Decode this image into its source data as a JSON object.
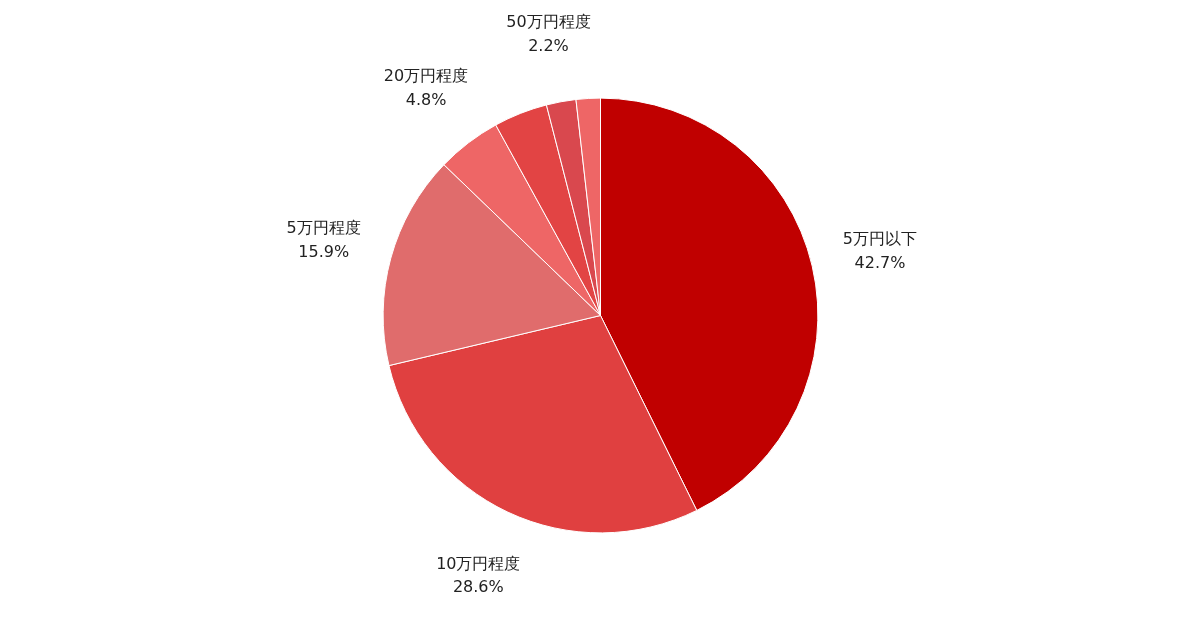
{
  "chart_data": {
    "type": "pie",
    "categories": [
      "5万円以下",
      "10万円程度",
      "5万円程度",
      "20万円程度",
      null,
      "50万円程度",
      null
    ],
    "values": [
      42.7,
      28.6,
      15.9,
      4.8,
      4.0,
      2.2,
      1.8
    ],
    "value_labels": [
      "42.7%",
      "28.6%",
      "15.9%",
      "4.8%",
      null,
      "2.2%",
      null
    ],
    "colors": [
      "#c00000",
      "#e04040",
      "#e06c6c",
      "#ee6666",
      "#e24444",
      "#d9484e",
      "#ee6666"
    ]
  }
}
